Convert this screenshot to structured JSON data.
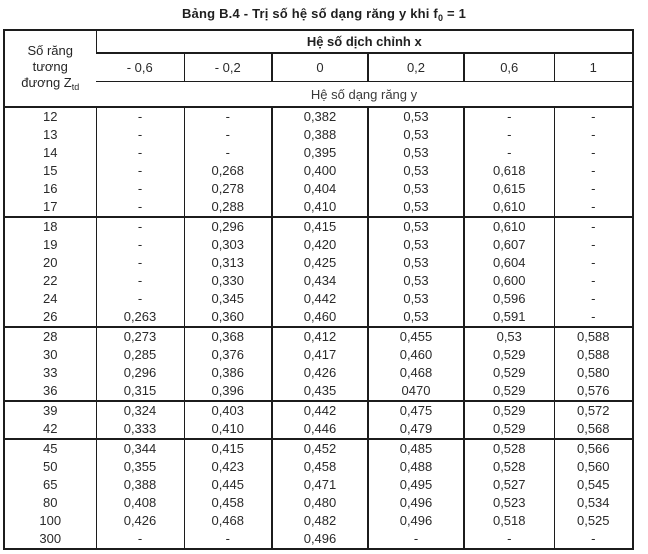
{
  "title": {
    "prefix": "Bảng B.4 - Trị số hệ số dạng răng y khi f",
    "subscript": "0",
    "suffix": " = 1"
  },
  "table": {
    "corner_header": {
      "lines": [
        "Số răng",
        "tương",
        "đương Z"
      ],
      "subscript": "td"
    },
    "top_span_header": "Hệ số dịch chỉnh x",
    "x_shift_values": [
      "- 0,6",
      "- 0,2",
      "0",
      "0,2",
      "0,6",
      "1"
    ],
    "bottom_span_header": "Hệ số dạng răng y",
    "groups": [
      {
        "rows": [
          [
            "12",
            "-",
            "-",
            "0,382",
            "0,53",
            "-",
            "-"
          ],
          [
            "13",
            "-",
            "-",
            "0,388",
            "0,53",
            "-",
            "-"
          ],
          [
            "14",
            "-",
            "-",
            "0,395",
            "0,53",
            "-",
            "-"
          ],
          [
            "15",
            "-",
            "0,268",
            "0,400",
            "0,53",
            "0,618",
            "-"
          ],
          [
            "16",
            "-",
            "0,278",
            "0,404",
            "0,53",
            "0,615",
            "-"
          ],
          [
            "17",
            "-",
            "0,288",
            "0,410",
            "0,53",
            "0,610",
            "-"
          ]
        ]
      },
      {
        "rows": [
          [
            "18",
            "-",
            "0,296",
            "0,415",
            "0,53",
            "0,610",
            "-"
          ],
          [
            "19",
            "-",
            "0,303",
            "0,420",
            "0,53",
            "0,607",
            "-"
          ],
          [
            "20",
            "-",
            "0,313",
            "0,425",
            "0,53",
            "0,604",
            "-"
          ],
          [
            "22",
            "-",
            "0,330",
            "0,434",
            "0,53",
            "0,600",
            "-"
          ],
          [
            "24",
            "-",
            "0,345",
            "0,442",
            "0,53",
            "0,596",
            "-"
          ],
          [
            "26",
            "0,263",
            "0,360",
            "0,460",
            "0,53",
            "0,591",
            "-"
          ]
        ]
      },
      {
        "rows": [
          [
            "28",
            "0,273",
            "0,368",
            "0,412",
            "0,455",
            "0,53",
            "0,588"
          ],
          [
            "30",
            "0,285",
            "0,376",
            "0,417",
            "0,460",
            "0,529",
            "0,588"
          ],
          [
            "33",
            "0,296",
            "0,386",
            "0,426",
            "0,468",
            "0,529",
            "0,580"
          ],
          [
            "36",
            "0,315",
            "0,396",
            "0,435",
            "0470",
            "0,529",
            "0,576"
          ]
        ]
      },
      {
        "rows": [
          [
            "39",
            "0,324",
            "0,403",
            "0,442",
            "0,475",
            "0,529",
            "0,572"
          ],
          [
            "42",
            "0,333",
            "0,410",
            "0,446",
            "0,479",
            "0,529",
            "0,568"
          ]
        ]
      },
      {
        "rows": [
          [
            "45",
            "0,344",
            "0,415",
            "0,452",
            "0,485",
            "0,528",
            "0,566"
          ],
          [
            "50",
            "0,355",
            "0,423",
            "0,458",
            "0,488",
            "0,528",
            "0,560"
          ],
          [
            "65",
            "0,388",
            "0,445",
            "0,471",
            "0,495",
            "0,527",
            "0,545"
          ],
          [
            "80",
            "0,408",
            "0,458",
            "0,480",
            "0,496",
            "0,523",
            "0,534"
          ],
          [
            "100",
            "0,426",
            "0,468",
            "0,482",
            "0,496",
            "0,518",
            "0,525"
          ],
          [
            "300",
            "-",
            "-",
            "0,496",
            "-",
            "-",
            "-"
          ]
        ]
      }
    ]
  }
}
